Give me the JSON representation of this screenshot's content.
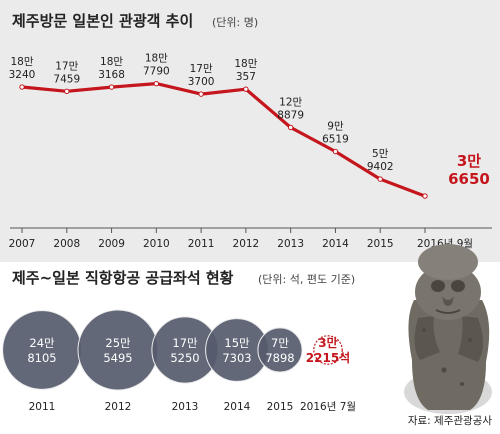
{
  "chart_data": [
    {
      "type": "line",
      "title": "제주방문 일본인 관광객 추이",
      "subtitle": "(단위: 명)",
      "x": [
        "2007",
        "2008",
        "2009",
        "2010",
        "2011",
        "2012",
        "2013",
        "2014",
        "2015",
        "2016년 9월"
      ],
      "series": [
        {
          "values": [
            183240,
            177459,
            183168,
            187790,
            173700,
            180357,
            128879,
            96519,
            59402,
            36650
          ]
        }
      ],
      "data_labels": [
        [
          "18만",
          "3240"
        ],
        [
          "17만",
          "7459"
        ],
        [
          "18만",
          "3168"
        ],
        [
          "18만",
          "7790"
        ],
        [
          "17만",
          "3700"
        ],
        [
          "18만",
          "357"
        ],
        [
          "12만",
          "8879"
        ],
        [
          "9만",
          "6519"
        ],
        [
          "5만",
          "9402"
        ],
        [
          "3만",
          "6650"
        ]
      ],
      "highlight_index": 9,
      "grid": false,
      "colors": {
        "line": "#c4161c",
        "highlight": "#c4161c",
        "background": "#ebebeb"
      }
    },
    {
      "type": "bubble",
      "title": "제주~일본 직항항공 공급좌석 현황",
      "subtitle": "(단위: 석, 편도 기준)",
      "categories": [
        "2011",
        "2012",
        "2013",
        "2014",
        "2015",
        "2016년 7월"
      ],
      "values": [
        248105,
        255495,
        175250,
        157303,
        77898,
        32215
      ],
      "data_labels": [
        [
          "24만",
          "8105"
        ],
        [
          "25만",
          "5495"
        ],
        [
          "17만",
          "5250"
        ],
        [
          "15만",
          "7303"
        ],
        [
          "7만",
          "7898"
        ],
        [
          "3만",
          "2215석"
        ]
      ],
      "highlight_index": 5,
      "colors": {
        "bubble": "#555b6c",
        "highlight": "#c4161c"
      }
    }
  ],
  "source": "자료: 제주관광공사",
  "illustration": "dol-hareubang-statue"
}
